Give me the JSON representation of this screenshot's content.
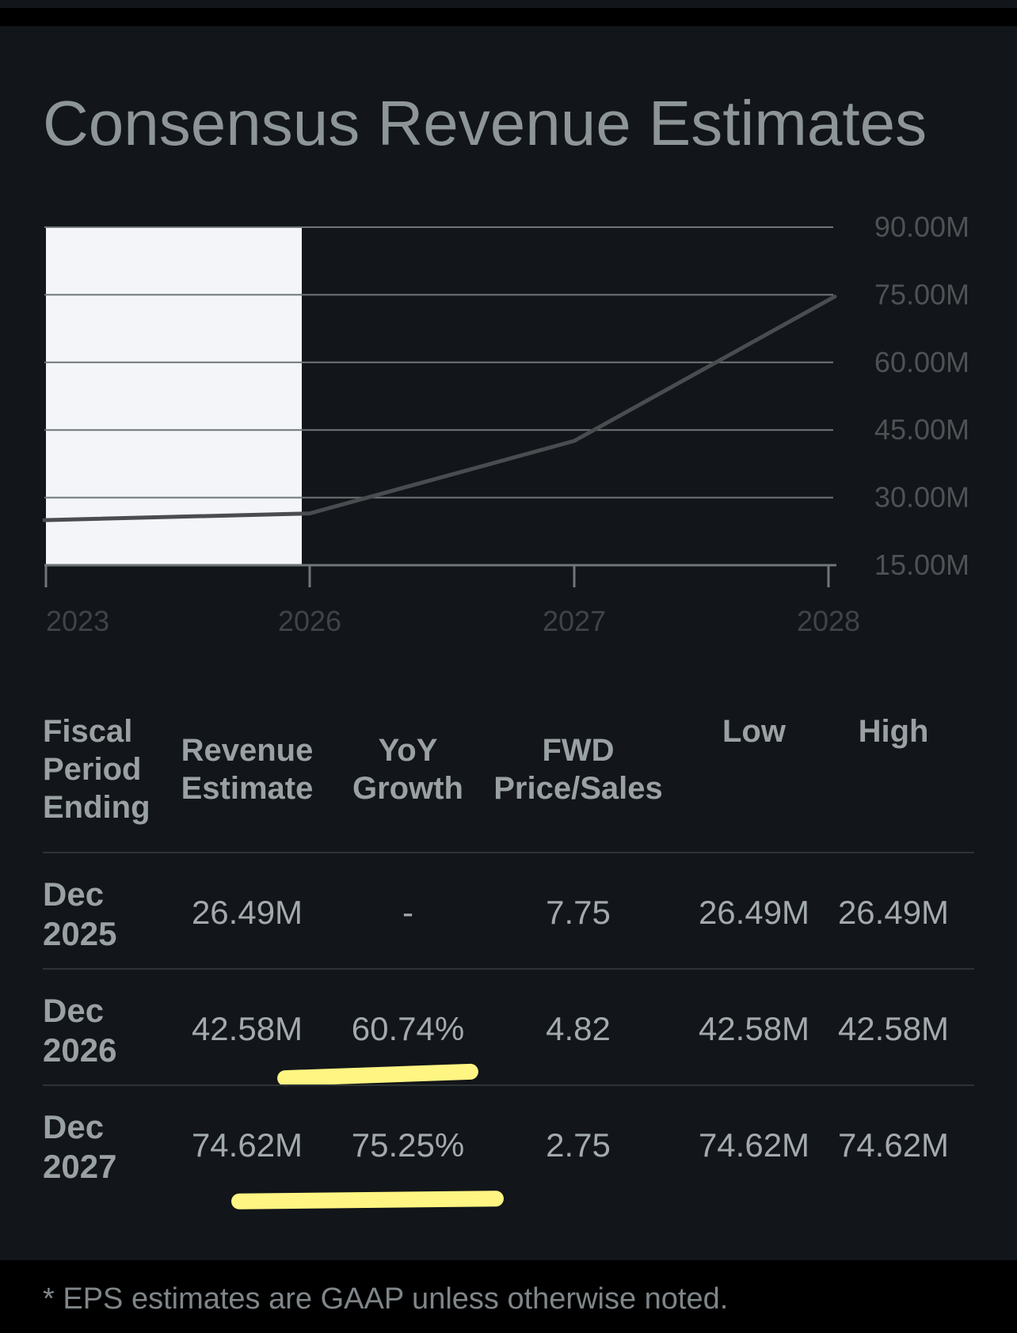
{
  "page": {
    "title": "Consensus Revenue Estimates",
    "footnote": "* EPS estimates are GAAP unless otherwise noted."
  },
  "colors": {
    "background": "#121519",
    "gridline": "#6f7678",
    "series_line": "#4a4d50",
    "shaded_region": "#f4f5f8",
    "highlight": "#fff582"
  },
  "chart_data": {
    "type": "line",
    "x": [
      "2023",
      "2026",
      "2027",
      "2028"
    ],
    "series": [
      {
        "values": [
          25.0,
          26.49,
          42.58,
          74.62
        ]
      }
    ],
    "yticks": [
      "90.00M",
      "75.00M",
      "60.00M",
      "45.00M",
      "30.00M",
      "15.00M"
    ],
    "ylim": [
      15,
      90
    ],
    "y_unit": "M",
    "grid": true,
    "y_axis_position": "right",
    "shaded_x_range": [
      "2023",
      "2026"
    ]
  },
  "table": {
    "headers": [
      {
        "lines": [
          "Fiscal",
          "Period",
          "Ending"
        ]
      },
      {
        "lines": [
          "Revenue",
          "Estimate"
        ]
      },
      {
        "lines": [
          "YoY",
          "Growth"
        ]
      },
      {
        "lines": [
          "FWD",
          "Price/Sales"
        ]
      },
      {
        "lines": [
          "Low"
        ]
      },
      {
        "lines": [
          "High"
        ]
      }
    ],
    "rows": [
      {
        "period": [
          "Dec",
          "2025"
        ],
        "revenue": "26.49M",
        "yoy": "-",
        "fwd_ps": "7.75",
        "low": "26.49M",
        "high": "26.49M"
      },
      {
        "period": [
          "Dec",
          "2026"
        ],
        "revenue": "42.58M",
        "yoy": "60.74%",
        "fwd_ps": "4.82",
        "low": "42.58M",
        "high": "42.58M"
      },
      {
        "period": [
          "Dec",
          "2027"
        ],
        "revenue": "74.62M",
        "yoy": "75.25%",
        "fwd_ps": "2.75",
        "low": "74.62M",
        "high": "74.62M"
      }
    ]
  }
}
